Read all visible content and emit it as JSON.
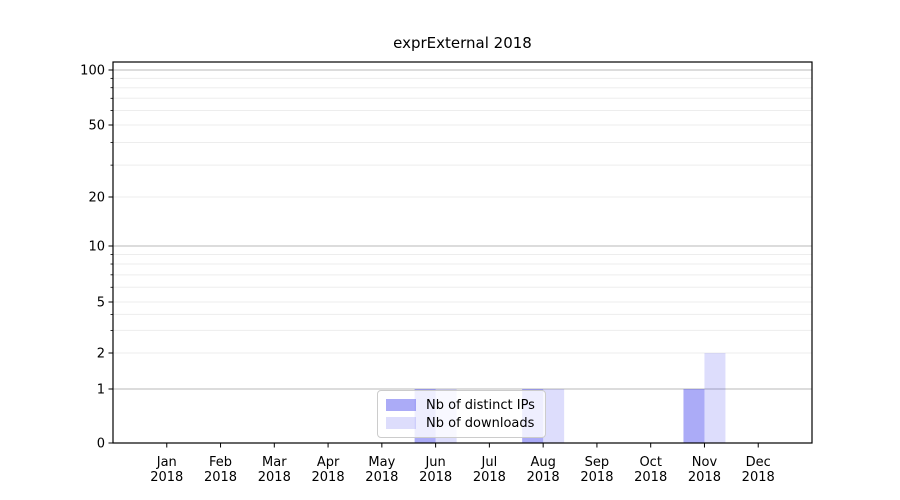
{
  "chart_data": {
    "type": "bar",
    "title": "exprExternal 2018",
    "categories": [
      "Jan",
      "Feb",
      "Mar",
      "Apr",
      "May",
      "Jun",
      "Jul",
      "Aug",
      "Sep",
      "Oct",
      "Nov",
      "Dec"
    ],
    "year_label": "2018",
    "series": [
      {
        "name": "Nb of distinct IPs",
        "color": "rgba(45,45,235,0.40)",
        "values": [
          0,
          0,
          0,
          0,
          0,
          1,
          0,
          1,
          0,
          0,
          1,
          0
        ]
      },
      {
        "name": "Nb of downloads",
        "color": "rgba(45,45,235,0.16)",
        "values": [
          0,
          0,
          0,
          0,
          0,
          1,
          0,
          1,
          0,
          0,
          2,
          0
        ]
      }
    ],
    "yticks": [
      0,
      1,
      2,
      5,
      10,
      20,
      50,
      100
    ],
    "ylim": [
      0,
      115
    ],
    "yscale": "symlog",
    "grid": true,
    "legend_position": "lower-center-inside",
    "colors": {
      "spine": "#000000",
      "major_grid": "#b8b8b8",
      "minor_grid": "#ededed",
      "tick_text": "#000000"
    }
  }
}
